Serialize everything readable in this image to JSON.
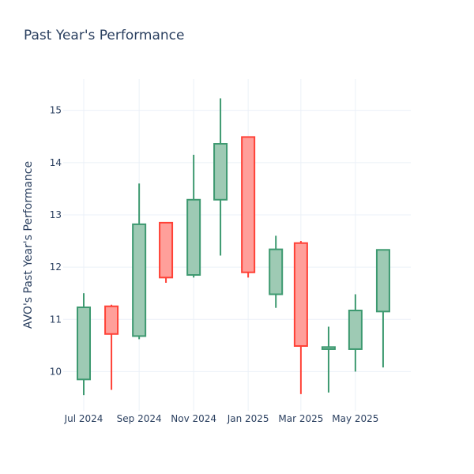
{
  "chart_data": {
    "type": "candlestick",
    "title": "Past Year's Performance",
    "xlabel": "",
    "ylabel": "AVO's Past Year's Performance",
    "ylim": [
      9.25,
      15.6
    ],
    "yticks": [
      10,
      11,
      12,
      13,
      14,
      15
    ],
    "xlim": [
      "2024-06-08",
      "2025-07-02"
    ],
    "xticks": [
      {
        "date": "2024-07-01",
        "label": "Jul 2024"
      },
      {
        "date": "2024-09-01",
        "label": "Sep 2024"
      },
      {
        "date": "2024-11-01",
        "label": "Nov 2024"
      },
      {
        "date": "2025-01-01",
        "label": "Jan 2025"
      },
      {
        "date": "2025-03-01",
        "label": "Mar 2025"
      },
      {
        "date": "2025-05-01",
        "label": "May 2025"
      }
    ],
    "grid": true,
    "colors": {
      "increasing_line": "#3d9970",
      "increasing_fill": "#9ecab4",
      "decreasing_line": "#ff4136",
      "decreasing_fill": "#ff9f9a",
      "grid": "#ebf0f8",
      "text": "#2a3f5f"
    },
    "candles": [
      {
        "date": "2024-07-01",
        "open": 9.85,
        "high": 11.5,
        "low": 9.55,
        "close": 11.23
      },
      {
        "date": "2024-08-01",
        "open": 11.25,
        "high": 11.28,
        "low": 9.65,
        "close": 10.72
      },
      {
        "date": "2024-09-01",
        "open": 10.68,
        "high": 13.6,
        "low": 10.62,
        "close": 12.82
      },
      {
        "date": "2024-10-01",
        "open": 12.85,
        "high": 12.85,
        "low": 11.7,
        "close": 11.8
      },
      {
        "date": "2024-11-01",
        "open": 11.85,
        "high": 14.15,
        "low": 11.8,
        "close": 13.29
      },
      {
        "date": "2024-12-01",
        "open": 13.29,
        "high": 15.23,
        "low": 12.22,
        "close": 14.36
      },
      {
        "date": "2025-01-01",
        "open": 14.49,
        "high": 14.49,
        "low": 11.8,
        "close": 11.9
      },
      {
        "date": "2025-02-01",
        "open": 11.48,
        "high": 12.6,
        "low": 11.22,
        "close": 12.34
      },
      {
        "date": "2025-03-01",
        "open": 12.46,
        "high": 12.5,
        "low": 9.57,
        "close": 10.49
      },
      {
        "date": "2025-04-01",
        "open": 10.43,
        "high": 10.86,
        "low": 9.6,
        "close": 10.47
      },
      {
        "date": "2025-05-01",
        "open": 10.43,
        "high": 11.48,
        "low": 10.0,
        "close": 11.17
      },
      {
        "date": "2025-06-01",
        "open": 11.15,
        "high": 12.33,
        "low": 10.08,
        "close": 12.33
      }
    ]
  }
}
